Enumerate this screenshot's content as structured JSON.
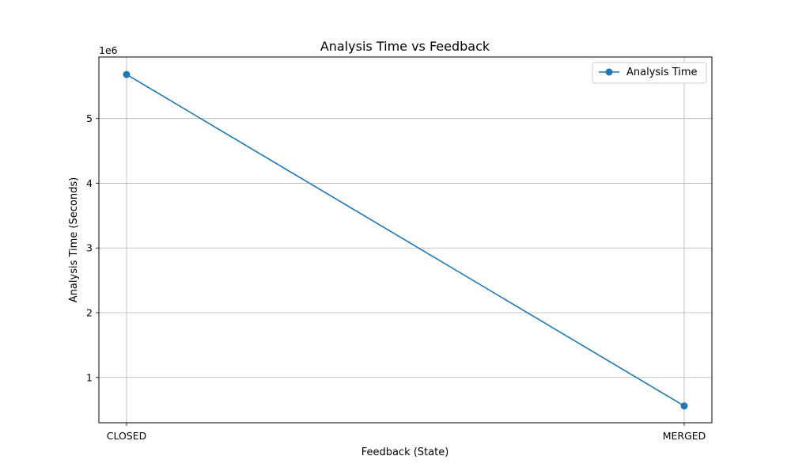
{
  "chart_data": {
    "type": "line",
    "title": "Analysis Time vs Feedback",
    "xlabel": "Feedback (State)",
    "ylabel": "Analysis Time (Seconds)",
    "y_offset_label": "1e6",
    "categories": [
      "CLOSED",
      "MERGED"
    ],
    "series": [
      {
        "name": "Analysis Time",
        "values": [
          5680000,
          560000
        ],
        "color": "#1f77b4",
        "marker": "circle"
      }
    ],
    "yticks": [
      1,
      2,
      3,
      4,
      5
    ],
    "y_scale_factor": 1000000,
    "ylim": [
      300000,
      5950000
    ],
    "grid": true,
    "legend": "top-right"
  }
}
